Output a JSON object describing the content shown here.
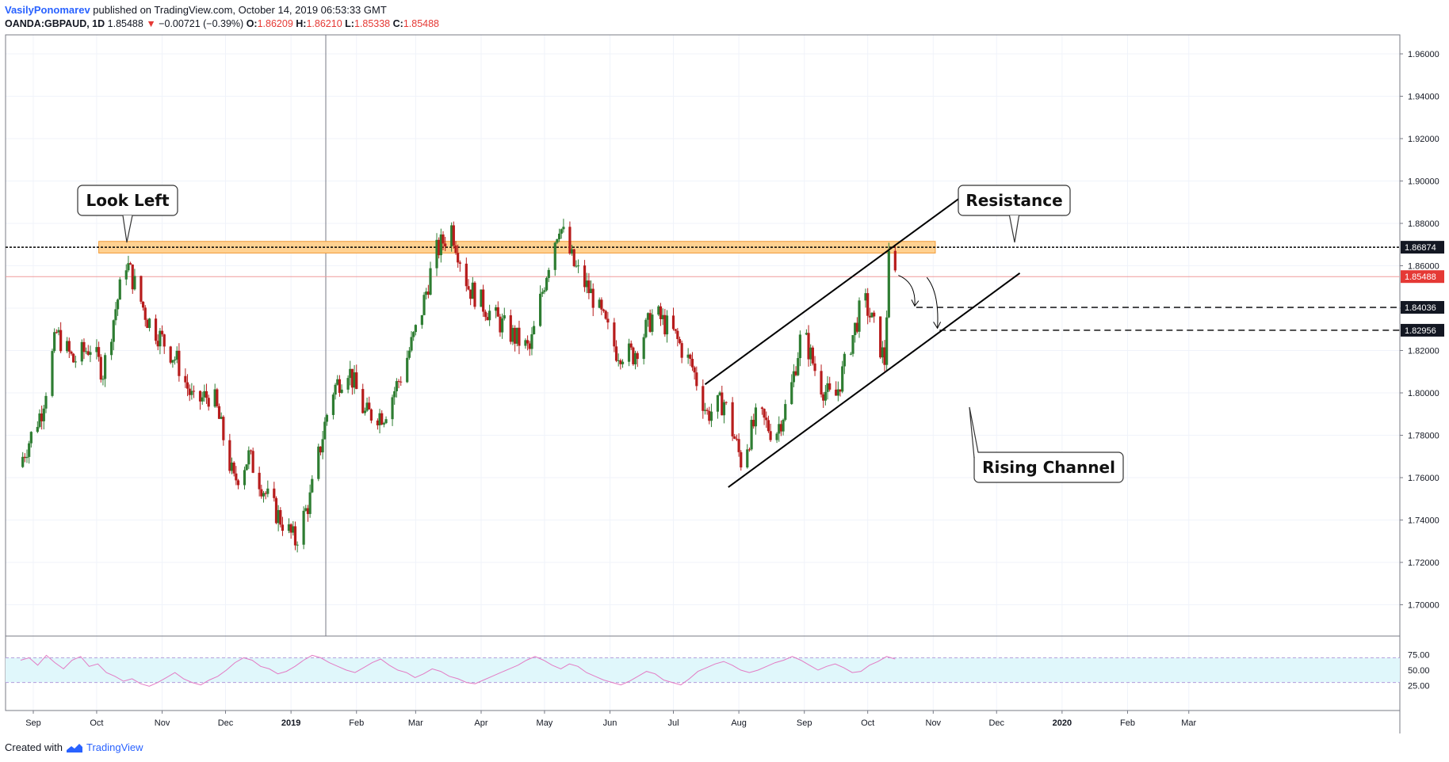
{
  "header": {
    "author": "VasilyPonomarev",
    "published": "published on TradingView.com, October 14, 2019 06:53:33 GMT",
    "symbol": "OANDA:GBPAUD, 1D",
    "last": "1.85488",
    "change_arrow": "▼",
    "change": "−0.00721 (−0.39%)",
    "o_label": "O:",
    "o_value": "1.86209",
    "h_label": "H:",
    "h_value": "1.86210",
    "l_label": "L:",
    "l_value": "1.85338",
    "c_label": "C:",
    "c_value": "1.85488"
  },
  "footer": {
    "created_with": "Created with",
    "brand": "TradingView",
    "logo_icon": "tradingview-logo-icon"
  },
  "colors": {
    "up": "#2e7d32",
    "down": "#b71c1c",
    "zone_fill": "#ffd191",
    "zone_stroke": "#f29c38",
    "rsi_line": "#e37bc4",
    "rsi_band": "#e0f7fb",
    "accent": "#2962ff"
  },
  "chart_data": {
    "type": "candlestick",
    "symbol": "OANDA:GBPAUD",
    "interval": "1D",
    "ylim": [
      1.6875,
      1.9725
    ],
    "y_ticks": [
      "1.96000",
      "1.94000",
      "1.92000",
      "1.90000",
      "1.88000",
      "1.86000",
      "1.84000",
      "1.82000",
      "1.80000",
      "1.78000",
      "1.76000",
      "1.74000",
      "1.72000",
      "1.70000"
    ],
    "x_ticks": [
      "Sep",
      "Oct",
      "Nov",
      "Dec",
      "2019",
      "Feb",
      "Mar",
      "Apr",
      "May",
      "Jun",
      "Jul",
      "Aug",
      "Sep",
      "Oct",
      "Nov",
      "Dec",
      "2020",
      "Feb",
      "Mar"
    ],
    "close_anchors": [
      {
        "date": "2018-08-25",
        "close": 1.765
      },
      {
        "date": "2018-09-05",
        "close": 1.792
      },
      {
        "date": "2018-09-12",
        "close": 1.828
      },
      {
        "date": "2018-09-20",
        "close": 1.815
      },
      {
        "date": "2018-09-28",
        "close": 1.822
      },
      {
        "date": "2018-10-04",
        "close": 1.81
      },
      {
        "date": "2018-10-10",
        "close": 1.84
      },
      {
        "date": "2018-10-15",
        "close": 1.862
      },
      {
        "date": "2018-10-25",
        "close": 1.835
      },
      {
        "date": "2018-11-08",
        "close": 1.815
      },
      {
        "date": "2018-11-16",
        "close": 1.795
      },
      {
        "date": "2018-11-25",
        "close": 1.8
      },
      {
        "date": "2018-12-05",
        "close": 1.758
      },
      {
        "date": "2018-12-12",
        "close": 1.77
      },
      {
        "date": "2018-12-22",
        "close": 1.748
      },
      {
        "date": "2019-01-03",
        "close": 1.73
      },
      {
        "date": "2019-01-10",
        "close": 1.75
      },
      {
        "date": "2019-01-20",
        "close": 1.8
      },
      {
        "date": "2019-01-28",
        "close": 1.812
      },
      {
        "date": "2019-02-05",
        "close": 1.79
      },
      {
        "date": "2019-02-14",
        "close": 1.79
      },
      {
        "date": "2019-02-22",
        "close": 1.808
      },
      {
        "date": "2019-03-03",
        "close": 1.835
      },
      {
        "date": "2019-03-10",
        "close": 1.865
      },
      {
        "date": "2019-03-18",
        "close": 1.878
      },
      {
        "date": "2019-03-26",
        "close": 1.85
      },
      {
        "date": "2019-04-05",
        "close": 1.838
      },
      {
        "date": "2019-04-15",
        "close": 1.828
      },
      {
        "date": "2019-04-24",
        "close": 1.82
      },
      {
        "date": "2019-05-03",
        "close": 1.862
      },
      {
        "date": "2019-05-08",
        "close": 1.88
      },
      {
        "date": "2019-05-15",
        "close": 1.86
      },
      {
        "date": "2019-05-24",
        "close": 1.845
      },
      {
        "date": "2019-06-04",
        "close": 1.82
      },
      {
        "date": "2019-06-12",
        "close": 1.818
      },
      {
        "date": "2019-06-22",
        "close": 1.838
      },
      {
        "date": "2019-07-01",
        "close": 1.828
      },
      {
        "date": "2019-07-10",
        "close": 1.812
      },
      {
        "date": "2019-07-17",
        "close": 1.79
      },
      {
        "date": "2019-07-25",
        "close": 1.796
      },
      {
        "date": "2019-08-02",
        "close": 1.768
      },
      {
        "date": "2019-08-10",
        "close": 1.79
      },
      {
        "date": "2019-08-18",
        "close": 1.78
      },
      {
        "date": "2019-08-25",
        "close": 1.798
      },
      {
        "date": "2019-08-31",
        "close": 1.83
      },
      {
        "date": "2019-09-08",
        "close": 1.805
      },
      {
        "date": "2019-09-15",
        "close": 1.795
      },
      {
        "date": "2019-09-22",
        "close": 1.82
      },
      {
        "date": "2019-09-29",
        "close": 1.845
      },
      {
        "date": "2019-10-05",
        "close": 1.828
      },
      {
        "date": "2019-10-09",
        "close": 1.815
      },
      {
        "date": "2019-10-11",
        "close": 1.862
      },
      {
        "date": "2019-10-14",
        "close": 1.85488
      }
    ],
    "horizontal_levels": [
      "1.86874",
      "1.84036",
      "1.82956"
    ],
    "last_price": "1.85488",
    "zone": [
      1.866,
      1.8715
    ],
    "annotations": [
      "Look Left",
      "Resistance",
      "Rising Channel"
    ],
    "rsi": {
      "ticks": [
        "75.00",
        "50.00",
        "25.00"
      ],
      "band": [
        30,
        70
      ],
      "values": [
        66,
        70,
        58,
        74,
        62,
        52,
        66,
        72,
        56,
        60,
        46,
        40,
        32,
        36,
        28,
        24,
        30,
        38,
        46,
        36,
        30,
        26,
        34,
        40,
        50,
        62,
        70,
        66,
        56,
        52,
        44,
        48,
        56,
        66,
        74,
        70,
        62,
        56,
        50,
        46,
        54,
        62,
        68,
        58,
        50,
        46,
        38,
        44,
        52,
        48,
        40,
        36,
        30,
        28,
        34,
        40,
        46,
        52,
        58,
        66,
        72,
        66,
        58,
        52,
        60,
        56,
        46,
        40,
        34,
        30,
        26,
        32,
        40,
        48,
        44,
        34,
        30,
        26,
        36,
        48,
        54,
        60,
        64,
        58,
        50,
        46,
        50,
        56,
        62,
        66,
        72,
        66,
        58,
        50,
        56,
        60,
        54,
        46,
        48,
        58,
        64,
        72,
        68
      ]
    }
  }
}
